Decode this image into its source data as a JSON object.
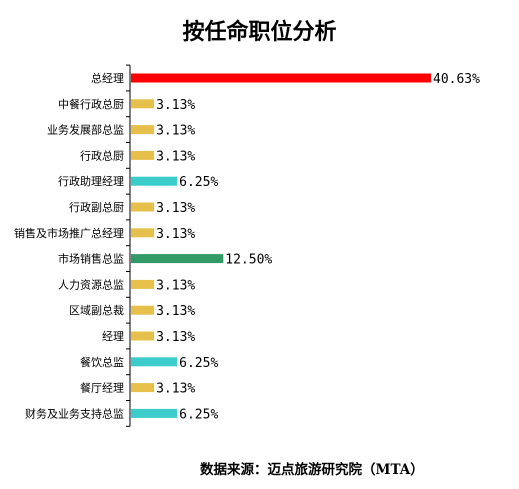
{
  "chart_data": {
    "type": "bar",
    "orientation": "horizontal",
    "title": "按任命职位分析",
    "source": "数据来源：迈点旅游研究院（MTA）",
    "categories": [
      "总经理",
      "中餐行政总厨",
      "业务发展部总监",
      "行政总厨",
      "行政助理经理",
      "行政副总厨",
      "销售及市场推广总经理",
      "市场销售总监",
      "人力资源总监",
      "区域副总裁",
      "经理",
      "餐饮总监",
      "餐厅经理",
      "财务及业务支持总监"
    ],
    "values": [
      40.63,
      3.13,
      3.13,
      3.13,
      6.25,
      3.13,
      3.13,
      12.5,
      3.13,
      3.13,
      3.13,
      6.25,
      3.13,
      6.25
    ],
    "value_labels": [
      "40.63%",
      "3.13%",
      "3.13%",
      "3.13%",
      "6.25%",
      "3.13%",
      "3.13%",
      "12.50%",
      "3.13%",
      "3.13%",
      "3.13%",
      "6.25%",
      "3.13%",
      "6.25%"
    ],
    "bar_colors": [
      "#ff0000",
      "#e6c04a",
      "#e6c04a",
      "#e6c04a",
      "#3ccccc",
      "#e6c04a",
      "#e6c04a",
      "#339966",
      "#e6c04a",
      "#e6c04a",
      "#e6c04a",
      "#3ccccc",
      "#e6c04a",
      "#3ccccc"
    ],
    "unit": "%",
    "xlim": [
      0,
      40.63
    ],
    "grid": false,
    "legend": "none"
  }
}
